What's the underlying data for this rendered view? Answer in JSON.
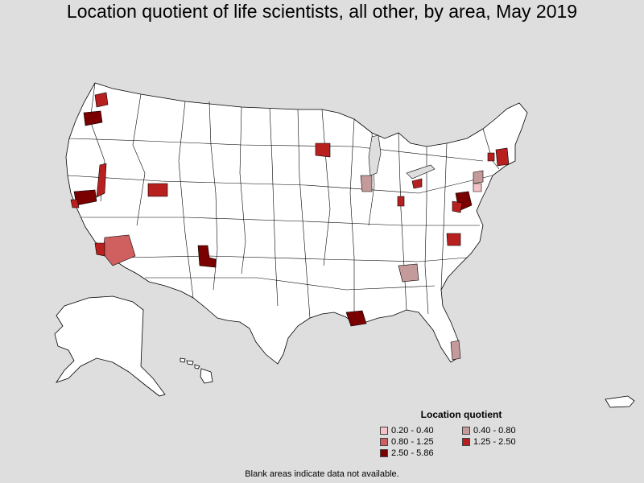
{
  "title": "Location quotient of life scientists, all other, by area, May 2019",
  "legend": {
    "title": "Location quotient",
    "items": [
      {
        "label": "0.20 - 0.40",
        "color": "#f4c2c8"
      },
      {
        "label": "0.40 - 0.80",
        "color": "#c49a9a"
      },
      {
        "label": "0.80 - 1.25",
        "color": "#d06060"
      },
      {
        "label": "1.25 - 2.50",
        "color": "#b82020"
      },
      {
        "label": "2.50 - 5.86",
        "color": "#7a0000"
      }
    ]
  },
  "footnote": "Blank areas indicate data not available.",
  "colors": {
    "background": "#dedede",
    "land": "#ffffff",
    "border": "#000000"
  }
}
